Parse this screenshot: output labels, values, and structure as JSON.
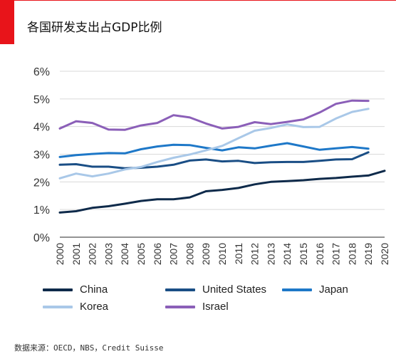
{
  "title": "各国研发支出占GDP比例",
  "source": "数据来源：OECD，NBS，Credit Suisse",
  "chart_data": {
    "type": "line",
    "x": [
      "2000",
      "2001",
      "2002",
      "2003",
      "2004",
      "2005",
      "2006",
      "2007",
      "2008",
      "2009",
      "2010",
      "2011",
      "2012",
      "2013",
      "2014",
      "2015",
      "2016",
      "2017",
      "2018",
      "2019",
      "2020"
    ],
    "ylim": [
      0,
      6
    ],
    "yticks": [
      "0%",
      "1%",
      "2%",
      "3%",
      "4%",
      "5%",
      "6%"
    ],
    "grid": "horizontal",
    "legend_position": "bottom",
    "series": [
      {
        "name": "China",
        "color": "#0e2a4a",
        "values": [
          0.89,
          0.94,
          1.06,
          1.12,
          1.21,
          1.31,
          1.37,
          1.37,
          1.44,
          1.66,
          1.71,
          1.78,
          1.91,
          2.0,
          2.03,
          2.06,
          2.11,
          2.14,
          2.19,
          2.23,
          2.4
        ]
      },
      {
        "name": "United States",
        "color": "#1a4e85",
        "values": [
          2.62,
          2.64,
          2.55,
          2.55,
          2.49,
          2.51,
          2.55,
          2.62,
          2.77,
          2.81,
          2.74,
          2.76,
          2.68,
          2.71,
          2.72,
          2.72,
          2.76,
          2.81,
          2.82,
          3.07,
          null
        ]
      },
      {
        "name": "Japan",
        "color": "#1e78c8",
        "values": [
          2.9,
          2.97,
          3.01,
          3.04,
          3.03,
          3.18,
          3.28,
          3.34,
          3.33,
          3.23,
          3.14,
          3.25,
          3.21,
          3.31,
          3.4,
          3.28,
          3.16,
          3.21,
          3.26,
          3.2,
          null
        ]
      },
      {
        "name": "Korea",
        "color": "#a9c8e8",
        "values": [
          2.13,
          2.3,
          2.2,
          2.3,
          2.45,
          2.54,
          2.72,
          2.87,
          2.99,
          3.14,
          3.3,
          3.58,
          3.85,
          3.95,
          4.08,
          3.98,
          3.99,
          4.29,
          4.53,
          4.64,
          null
        ]
      },
      {
        "name": "Israel",
        "color": "#8b5fb8",
        "values": [
          3.93,
          4.19,
          4.13,
          3.89,
          3.88,
          4.04,
          4.13,
          4.41,
          4.33,
          4.11,
          3.93,
          3.99,
          4.16,
          4.09,
          4.17,
          4.26,
          4.51,
          4.82,
          4.94,
          4.93,
          null
        ]
      }
    ]
  }
}
